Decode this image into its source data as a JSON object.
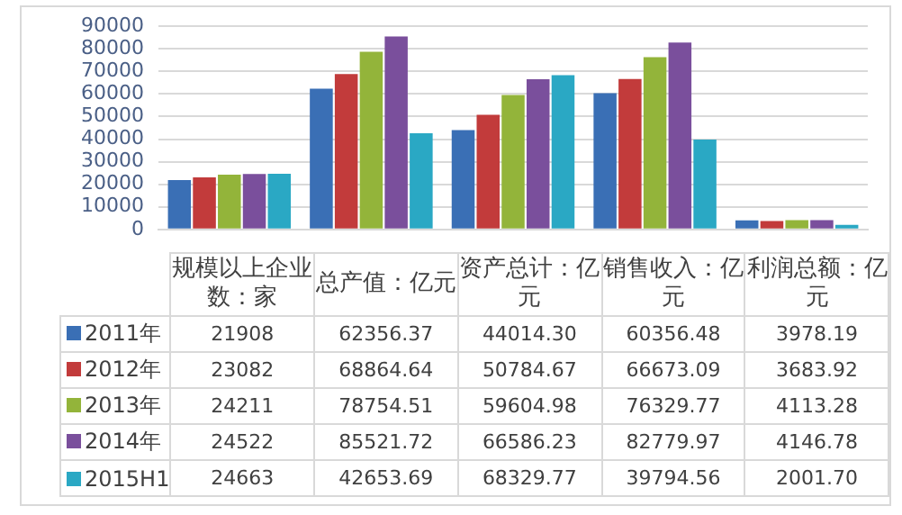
{
  "chart_data": {
    "type": "bar",
    "categories": [
      "规模以上企业数：家",
      "总产值：亿元",
      "资产总计：亿元",
      "销售收入：亿元",
      "利润总额：亿元"
    ],
    "series": [
      {
        "name": "2011年",
        "color": "#3a6fb5",
        "values": [
          21908,
          62356.37,
          44014.3,
          60356.48,
          3978.19
        ],
        "value_labels": [
          "21908",
          "62356.37",
          "44014.30",
          "60356.48",
          "3978.19"
        ]
      },
      {
        "name": "2012年",
        "color": "#c23b3b",
        "values": [
          23082,
          68864.64,
          50784.67,
          66673.09,
          3683.92
        ],
        "value_labels": [
          "23082",
          "68864.64",
          "50784.67",
          "66673.09",
          "3683.92"
        ]
      },
      {
        "name": "2013年",
        "color": "#93b43a",
        "values": [
          24211,
          78754.51,
          59604.98,
          76329.77,
          4113.28
        ],
        "value_labels": [
          "24211",
          "78754.51",
          "59604.98",
          "76329.77",
          "4113.28"
        ]
      },
      {
        "name": "2014年",
        "color": "#7a4f9c",
        "values": [
          24522,
          85521.72,
          66586.23,
          82779.97,
          4146.78
        ],
        "value_labels": [
          "24522",
          "85521.72",
          "66586.23",
          "82779.97",
          "4146.78"
        ]
      },
      {
        "name": "2015H1",
        "color": "#2aa8c4",
        "values": [
          24663,
          42653.69,
          68329.77,
          39794.56,
          2001.7
        ],
        "value_labels": [
          "24663",
          "42653.69",
          "68329.77",
          "39794.56",
          "2001.70"
        ]
      }
    ],
    "ylim": [
      0,
      90000
    ],
    "yticks": [
      0,
      10000,
      20000,
      30000,
      40000,
      50000,
      60000,
      70000,
      80000,
      90000
    ],
    "grid": "y",
    "legend": "bottom left"
  }
}
